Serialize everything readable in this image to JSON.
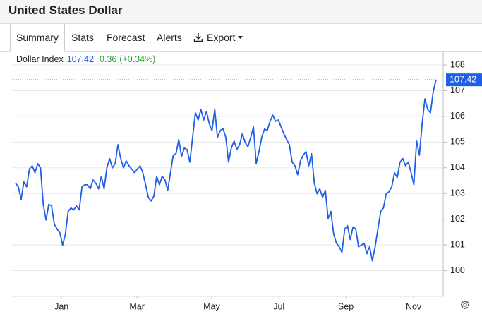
{
  "header": {
    "title": "United States Dollar",
    "tabs": [
      "Summary",
      "Stats",
      "Forecast",
      "Alerts",
      "Export"
    ]
  },
  "quote": {
    "change": "0.36",
    "change_pct": "(+0.34%)",
    "change_color": "#2ca02c"
  },
  "chart_data": {
    "type": "line",
    "x": [
      0,
      1,
      2,
      3,
      4,
      5,
      6,
      7,
      8,
      9,
      10,
      11,
      12,
      13,
      14,
      15,
      16,
      17,
      18,
      19,
      20,
      21,
      22,
      23,
      24,
      25,
      26,
      27,
      28,
      29,
      30,
      31,
      32,
      33,
      34,
      35,
      36,
      37,
      38,
      39,
      40,
      41,
      42,
      43,
      44,
      45,
      46,
      47,
      48,
      49,
      50,
      51,
      52,
      53,
      54,
      55,
      56,
      57,
      58,
      59,
      60,
      61,
      62,
      63,
      64,
      65,
      66,
      67,
      68,
      69,
      70,
      71,
      72,
      73,
      74,
      75,
      76,
      77,
      78,
      79,
      80,
      81,
      82,
      83,
      84,
      85,
      86,
      87,
      88,
      89,
      90,
      91,
      92,
      93,
      94,
      95,
      96,
      97,
      98,
      99,
      100,
      101,
      102,
      103,
      104,
      105,
      106,
      107,
      108,
      109,
      110,
      111,
      112,
      113,
      114,
      115,
      116,
      117,
      118,
      119,
      120,
      121,
      122,
      123,
      124,
      125,
      126,
      127,
      128,
      129,
      130,
      131,
      132,
      133,
      134,
      135,
      136,
      137,
      138,
      139,
      140,
      141,
      142,
      143,
      144,
      145,
      146,
      147,
      148,
      149,
      150,
      151,
      152
    ],
    "series": [
      {
        "name": "Dollar Index",
        "color": "#1f5fe6",
        "values": [
          103.4,
          103.26,
          102.77,
          103.45,
          103.26,
          103.95,
          104.08,
          103.81,
          104.16,
          104.0,
          102.58,
          101.97,
          102.58,
          102.52,
          101.81,
          101.62,
          101.48,
          100.99,
          101.42,
          102.3,
          102.44,
          102.36,
          102.52,
          102.36,
          103.26,
          103.34,
          103.34,
          103.18,
          103.53,
          103.4,
          103.18,
          103.67,
          103.18,
          104.0,
          104.36,
          104.0,
          104.16,
          104.9,
          104.36,
          104.0,
          104.27,
          104.08,
          103.95,
          103.81,
          103.95,
          104.08,
          103.81,
          103.34,
          102.85,
          102.71,
          102.9,
          103.67,
          103.34,
          103.67,
          103.53,
          103.12,
          103.81,
          104.49,
          104.55,
          105.1,
          104.44,
          104.77,
          104.71,
          104.22,
          105.18,
          106.14,
          105.86,
          106.27,
          105.86,
          106.19,
          105.73,
          105.45,
          106.27,
          105.18,
          105.45,
          105.53,
          105.18,
          104.22,
          104.77,
          105.04,
          104.71,
          104.9,
          105.32,
          104.99,
          104.82,
          105.18,
          105.59,
          104.16,
          104.63,
          105.18,
          105.51,
          105.45,
          105.81,
          106.05,
          105.81,
          105.86,
          105.59,
          105.32,
          105.1,
          104.9,
          104.22,
          104.08,
          103.73,
          104.27,
          104.49,
          104.63,
          104.08,
          104.55,
          103.4,
          102.99,
          103.18,
          102.85,
          103.12,
          102.03,
          102.3,
          101.42,
          101.07,
          100.93,
          100.71,
          101.62,
          101.75,
          101.21,
          101.7,
          101.62,
          100.93,
          100.99,
          101.07,
          100.66,
          100.93,
          100.38,
          100.93,
          101.62,
          102.3,
          102.44,
          102.99,
          103.07,
          103.26,
          103.81,
          103.62,
          104.22,
          104.36,
          104.08,
          104.22,
          103.81,
          103.34,
          105.04,
          104.49,
          105.73,
          106.68,
          106.27,
          106.14,
          106.96,
          107.42
        ]
      }
    ],
    "xlim": [
      -1.3,
      154.6
    ],
    "xticks": [
      {
        "value": 16.6,
        "label": "Jan"
      },
      {
        "value": 43.9,
        "label": "Mar"
      },
      {
        "value": 70.9,
        "label": "May"
      },
      {
        "value": 95.2,
        "label": "Jul"
      },
      {
        "value": 119.4,
        "label": "Sep"
      },
      {
        "value": 143.9,
        "label": "Nov"
      }
    ],
    "ylim": [
      99.0,
      108.55
    ],
    "yticks": [
      100,
      101,
      102,
      103,
      104,
      105,
      106,
      107,
      108
    ],
    "grid": true
  }
}
